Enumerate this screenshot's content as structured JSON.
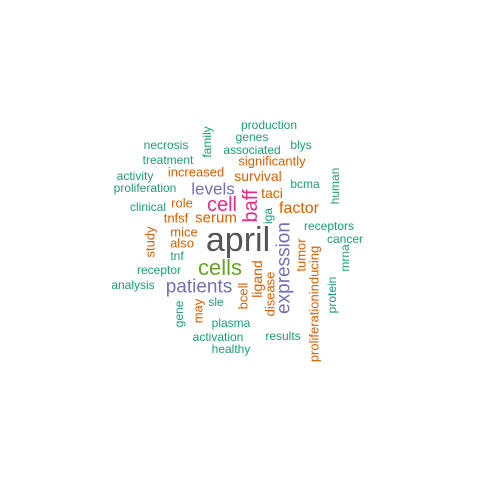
{
  "colors": {
    "gray": "#555555",
    "green": "#1b9e77",
    "orange": "#d95f02",
    "purple": "#7570b3",
    "magenta": "#e7298a",
    "lime": "#66a61e"
  },
  "words": [
    {
      "key": "april",
      "text": "april",
      "color": "gray"
    },
    {
      "key": "cells",
      "text": "cells",
      "color": "lime"
    },
    {
      "key": "cell",
      "text": "cell",
      "color": "magenta"
    },
    {
      "key": "baff",
      "text": "baff",
      "color": "magenta"
    },
    {
      "key": "patients",
      "text": "patients",
      "color": "purple"
    },
    {
      "key": "expression",
      "text": "expression",
      "color": "purple"
    },
    {
      "key": "levels",
      "text": "levels",
      "color": "purple"
    },
    {
      "key": "factor",
      "text": "factor",
      "color": "orange"
    },
    {
      "key": "serum",
      "text": "serum",
      "color": "orange"
    },
    {
      "key": "survival",
      "text": "survival",
      "color": "orange"
    },
    {
      "key": "increased",
      "text": "increased",
      "color": "orange"
    },
    {
      "key": "significantly",
      "text": "significantly",
      "color": "orange"
    },
    {
      "key": "ligand",
      "text": "ligand",
      "color": "orange"
    },
    {
      "key": "taci",
      "text": "taci",
      "color": "orange"
    },
    {
      "key": "role",
      "text": "role",
      "color": "orange"
    },
    {
      "key": "tnfsf",
      "text": "tnfsf",
      "color": "orange"
    },
    {
      "key": "mice",
      "text": "mice",
      "color": "orange"
    },
    {
      "key": "also",
      "text": "also",
      "color": "orange"
    },
    {
      "key": "tumor",
      "text": "tumor",
      "color": "orange"
    },
    {
      "key": "study",
      "text": "study",
      "color": "orange"
    },
    {
      "key": "disease",
      "text": "disease",
      "color": "orange"
    },
    {
      "key": "bcell",
      "text": "bcell",
      "color": "orange"
    },
    {
      "key": "may",
      "text": "may",
      "color": "orange"
    },
    {
      "key": "proliferationinducing",
      "text": "proliferationinducing",
      "color": "orange"
    },
    {
      "key": "production",
      "text": "production",
      "color": "green"
    },
    {
      "key": "genes",
      "text": "genes",
      "color": "green"
    },
    {
      "key": "blys",
      "text": "blys",
      "color": "green"
    },
    {
      "key": "associated",
      "text": "associated",
      "color": "green"
    },
    {
      "key": "necrosis",
      "text": "necrosis",
      "color": "green"
    },
    {
      "key": "family",
      "text": "family",
      "color": "green"
    },
    {
      "key": "treatment",
      "text": "treatment",
      "color": "green"
    },
    {
      "key": "activity",
      "text": "activity",
      "color": "green"
    },
    {
      "key": "proliferation",
      "text": "proliferation",
      "color": "green"
    },
    {
      "key": "bcma",
      "text": "bcma",
      "color": "green"
    },
    {
      "key": "human",
      "text": "human",
      "color": "green"
    },
    {
      "key": "clinical",
      "text": "clinical",
      "color": "green"
    },
    {
      "key": "iga",
      "text": "iga",
      "color": "green"
    },
    {
      "key": "receptors",
      "text": "receptors",
      "color": "green"
    },
    {
      "key": "cancer",
      "text": "cancer",
      "color": "green"
    },
    {
      "key": "mrna",
      "text": "mrna",
      "color": "green"
    },
    {
      "key": "tnf",
      "text": "tnf",
      "color": "green"
    },
    {
      "key": "receptor",
      "text": "receptor",
      "color": "green"
    },
    {
      "key": "analysis",
      "text": "analysis",
      "color": "green"
    },
    {
      "key": "protein",
      "text": "protein",
      "color": "green"
    },
    {
      "key": "sle",
      "text": "sle",
      "color": "green"
    },
    {
      "key": "gene",
      "text": "gene",
      "color": "green"
    },
    {
      "key": "plasma",
      "text": "plasma",
      "color": "green"
    },
    {
      "key": "activation",
      "text": "activation",
      "color": "green"
    },
    {
      "key": "results",
      "text": "results",
      "color": "green"
    },
    {
      "key": "healthy",
      "text": "healthy",
      "color": "green"
    }
  ]
}
